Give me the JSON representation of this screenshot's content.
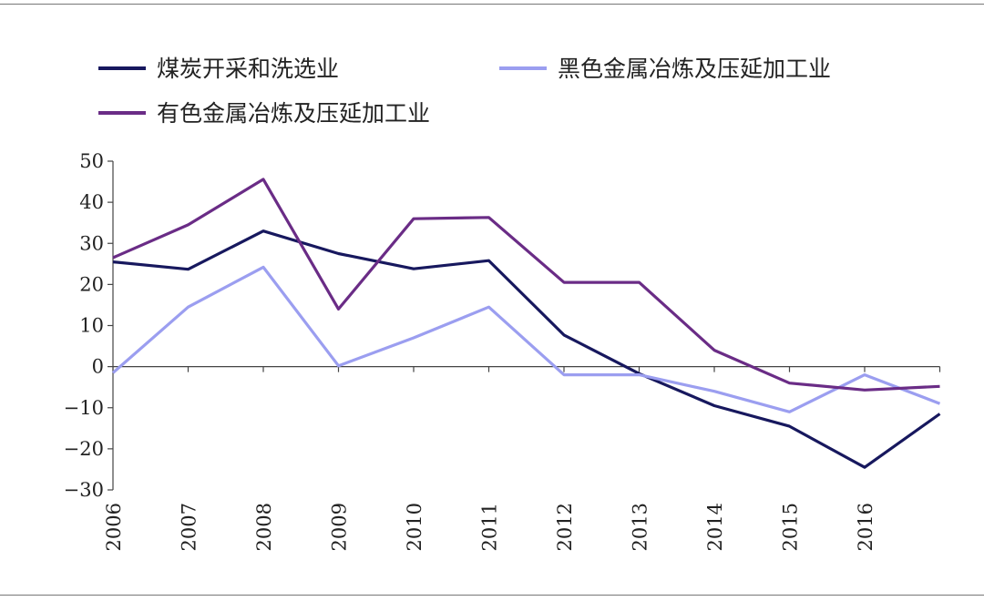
{
  "chart_data": {
    "type": "line",
    "title": "",
    "xlabel": "",
    "ylabel": "",
    "categories": [
      "2006",
      "2007",
      "2008",
      "2009",
      "2010",
      "2011",
      "2012",
      "2013",
      "2014",
      "2015",
      "2016",
      ""
    ],
    "y_ticks": [
      "50",
      "40",
      "30",
      "20",
      "10",
      "0",
      "−10",
      "−20",
      "−30"
    ],
    "ylim": [
      -30,
      50
    ],
    "grid": false,
    "legend_position": "top",
    "series": [
      {
        "name": "煤炭开采和洗选业",
        "color": "#17185e",
        "values": [
          25.5,
          23.7,
          33,
          27.5,
          23.8,
          25.8,
          7.7,
          -1.7,
          -9.5,
          -14.5,
          -24.5,
          -11.5
        ]
      },
      {
        "name": "黑色金属冶炼及压延加工业",
        "color": "#9b9ef0",
        "values": [
          -1.5,
          14.5,
          24.2,
          0.2,
          7,
          14.5,
          -2,
          -2,
          -6,
          -11,
          -2,
          -9
        ]
      },
      {
        "name": "有色金属冶炼及压延加工业",
        "color": "#6a2c86",
        "values": [
          26.5,
          34.5,
          45.6,
          14,
          36,
          36.3,
          20.5,
          20.5,
          4,
          -4,
          -5.7,
          -4.8
        ]
      }
    ]
  }
}
